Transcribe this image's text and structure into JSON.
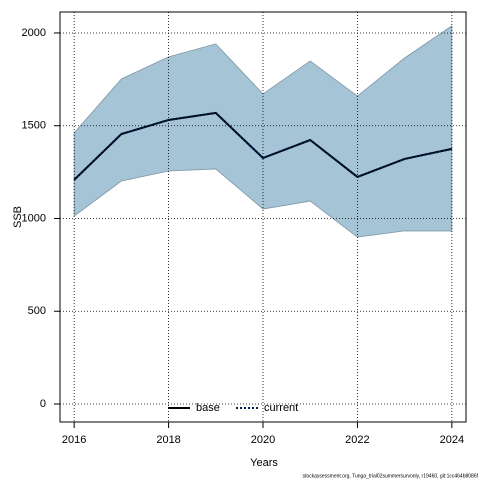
{
  "chart_data": {
    "type": "line",
    "x": [
      2016,
      2017,
      2018,
      2019,
      2020,
      2021,
      2022,
      2023,
      2024
    ],
    "series": [
      {
        "name": "base",
        "color": "#000000",
        "dash": "solid",
        "values": [
          1208,
          1455,
          1531,
          1569,
          1326,
          1423,
          1224,
          1321,
          1375
        ]
      },
      {
        "name": "current",
        "color": "#00205b",
        "dash": "dotted",
        "values": [
          1208,
          1455,
          1531,
          1569,
          1326,
          1423,
          1224,
          1321,
          1375
        ],
        "lower": [
          1013,
          1202,
          1256,
          1267,
          1051,
          1094,
          900,
          933,
          933
        ],
        "upper": [
          1461,
          1752,
          1871,
          1941,
          1671,
          1849,
          1660,
          1865,
          2038
        ],
        "band_color": "#a5c4d6"
      }
    ],
    "xlabel": "Years",
    "ylabel": "SSB",
    "xlim": [
      2015.7,
      2024.3
    ],
    "xticks": [
      2016,
      2018,
      2020,
      2022,
      2024
    ],
    "ylim": [
      -97,
      2113
    ],
    "yticks": [
      0,
      500,
      1000,
      1500,
      2000
    ],
    "grid": true,
    "legend": "bottom",
    "footnote": "stockassessment.org, Tunga_trial02summersurvonly, r19460, git:1cc464b8086f"
  }
}
